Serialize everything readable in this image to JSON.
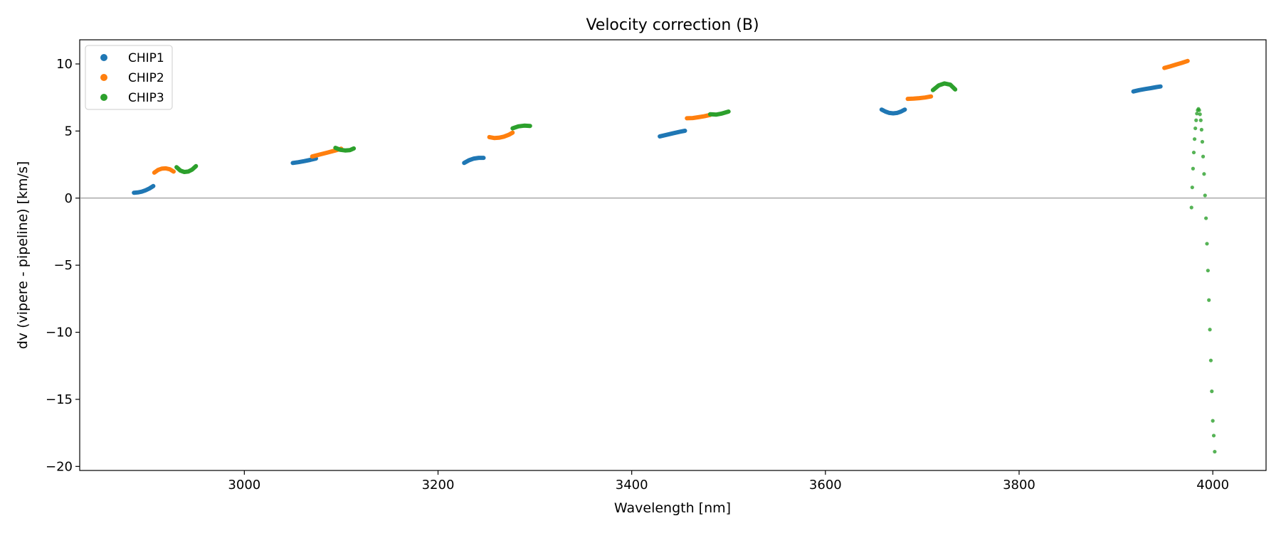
{
  "chart_data": {
    "type": "scatter",
    "title": "Velocity correction (B)",
    "xlabel": "Wavelength [nm]",
    "ylabel": "dv (vipere - pipeline) [km/s]",
    "xlim": [
      2830,
      4055
    ],
    "ylim": [
      -20.3,
      11.8
    ],
    "xticks": [
      3000,
      3200,
      3400,
      3600,
      3800,
      4000
    ],
    "xtick_labels": [
      "3000",
      "3200",
      "3400",
      "3600",
      "3800",
      "4000"
    ],
    "yticks": [
      -20,
      -15,
      -10,
      -5,
      0,
      5,
      10
    ],
    "ytick_labels": [
      "−20",
      "−15",
      "−10",
      "−5",
      "0",
      "5",
      "10"
    ],
    "grid": false,
    "zero_line": 0,
    "legend_position": "top-left",
    "series": [
      {
        "name": "CHIP1",
        "color": "#1f77b4",
        "segments": [
          {
            "x": [
              2886,
              2890,
              2894,
              2898,
              2902,
              2906
            ],
            "y": [
              0.4,
              0.42,
              0.48,
              0.58,
              0.72,
              0.9
            ]
          },
          {
            "x": [
              3050,
              3056,
              3062,
              3068,
              3074
            ],
            "y": [
              2.62,
              2.68,
              2.76,
              2.85,
              2.95
            ]
          },
          {
            "x": [
              3227,
              3232,
              3237,
              3242,
              3247
            ],
            "y": [
              2.62,
              2.82,
              2.95,
              3.0,
              3.0
            ]
          },
          {
            "x": [
              3429,
              3436,
              3443,
              3450,
              3455
            ],
            "y": [
              4.6,
              4.72,
              4.84,
              4.95,
              5.02
            ]
          },
          {
            "x": [
              3658,
              3662,
              3666,
              3670,
              3674,
              3678,
              3682
            ],
            "y": [
              6.6,
              6.45,
              6.35,
              6.32,
              6.35,
              6.45,
              6.6
            ]
          },
          {
            "x": [
              3918,
              3924,
              3930,
              3936,
              3942,
              3946
            ],
            "y": [
              7.95,
              8.05,
              8.13,
              8.2,
              8.28,
              8.32
            ]
          }
        ]
      },
      {
        "name": "CHIP2",
        "color": "#ff7f0e",
        "segments": [
          {
            "x": [
              2907,
              2911,
              2915,
              2919,
              2923,
              2927
            ],
            "y": [
              1.9,
              2.1,
              2.2,
              2.22,
              2.15,
              1.98
            ]
          },
          {
            "x": [
              3070,
              3078,
              3086,
              3094,
              3100
            ],
            "y": [
              3.1,
              3.25,
              3.4,
              3.55,
              3.68
            ]
          },
          {
            "x": [
              3253,
              3258,
              3263,
              3268,
              3273,
              3277
            ],
            "y": [
              4.55,
              4.48,
              4.5,
              4.58,
              4.72,
              4.88
            ]
          },
          {
            "x": [
              3457,
              3463,
              3469,
              3475,
              3481
            ],
            "y": [
              5.95,
              5.97,
              6.03,
              6.1,
              6.2
            ]
          },
          {
            "x": [
              3685,
              3691,
              3697,
              3703,
              3709
            ],
            "y": [
              7.4,
              7.42,
              7.45,
              7.5,
              7.58
            ]
          },
          {
            "x": [
              3950,
              3956,
              3962,
              3968,
              3974
            ],
            "y": [
              9.7,
              9.82,
              9.95,
              10.08,
              10.22
            ]
          }
        ]
      },
      {
        "name": "CHIP3",
        "color": "#2ca02c",
        "segments": [
          {
            "x": [
              2930,
              2934,
              2938,
              2942,
              2946,
              2950
            ],
            "y": [
              2.3,
              2.05,
              1.95,
              1.98,
              2.12,
              2.38
            ]
          },
          {
            "x": [
              3094,
              3099,
              3104,
              3109,
              3113
            ],
            "y": [
              3.75,
              3.6,
              3.55,
              3.58,
              3.7
            ]
          },
          {
            "x": [
              3277,
              3283,
              3289,
              3295
            ],
            "y": [
              5.2,
              5.35,
              5.4,
              5.38
            ]
          },
          {
            "x": [
              3481,
              3487,
              3493,
              3500
            ],
            "y": [
              6.25,
              6.22,
              6.3,
              6.45
            ]
          },
          {
            "x": [
              3711,
              3717,
              3723,
              3729,
              3734
            ],
            "y": [
              8.05,
              8.4,
              8.55,
              8.45,
              8.1
            ]
          }
        ],
        "scatter": {
          "x": [
            3978,
            3978.8,
            3979.6,
            3980.4,
            3981.2,
            3982,
            3982.8,
            3983.6,
            3984.4,
            3985.2,
            3986,
            3986.8,
            3987.6,
            3988.4,
            3989.2,
            3990,
            3991,
            3992,
            3993,
            3994,
            3995,
            3996,
            3997,
            3998,
            3999,
            4000,
            4001,
            4002
          ],
          "y": [
            -0.7,
            0.8,
            2.2,
            3.4,
            4.4,
            5.2,
            5.8,
            6.3,
            6.55,
            6.65,
            6.55,
            6.25,
            5.8,
            5.1,
            4.2,
            3.1,
            1.8,
            0.2,
            -1.5,
            -3.4,
            -5.4,
            -7.6,
            -9.8,
            -12.1,
            -14.4,
            -16.6,
            -17.7,
            -18.9
          ]
        }
      }
    ]
  }
}
